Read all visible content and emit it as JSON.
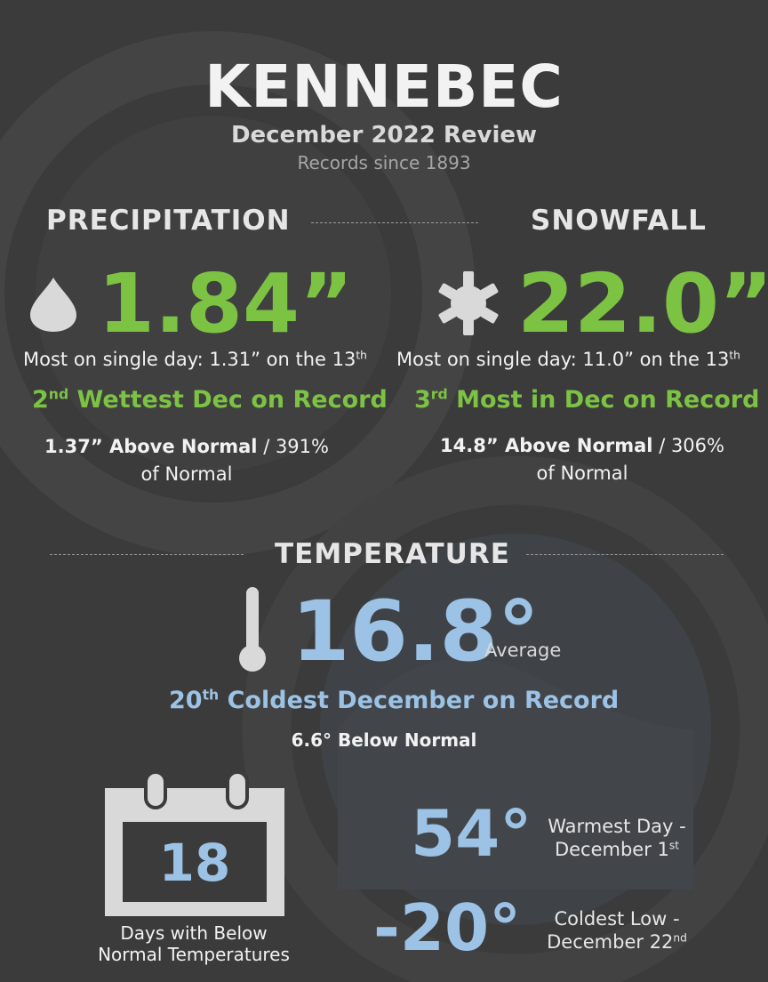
{
  "header": {
    "title": "KENNEBEC",
    "subtitle": "December 2022 Review",
    "records_since": "Records since 1893"
  },
  "precipitation": {
    "heading": "PRECIPITATION",
    "icon": "raindrop-icon",
    "total": "1.84”",
    "max_day_text": "Most on single day: 1.31” on the 13",
    "max_day_sup": "th",
    "rank_num": "2",
    "rank_sup": "nd",
    "rank_text": " Wettest Dec on Record",
    "departure": "1.37” Above Normal",
    "percent": " / 391%",
    "percent_line2": "of Normal"
  },
  "snowfall": {
    "heading": "SNOWFALL",
    "icon": "snowflake-icon",
    "total": "22.0”",
    "max_day_text": "Most on single day: 11.0” on the 13",
    "max_day_sup": "th",
    "rank_num": "3",
    "rank_sup": "rd",
    "rank_text": " Most in Dec on Record",
    "departure": "14.8” Above Normal",
    "percent": " / 306%",
    "percent_line2": "of Normal"
  },
  "temperature": {
    "heading": "TEMPERATURE",
    "icon": "thermometer-icon",
    "average": "16.8°",
    "average_label": "Average",
    "rank_num": "20",
    "rank_sup": "th",
    "rank_text": " Coldest December on Record",
    "departure": "6.6° Below Normal",
    "days_below": "18",
    "days_below_label_1": "Days with Below",
    "days_below_label_2": "Normal Temperatures",
    "warmest_value": "54°",
    "warmest_label_1": "Warmest Day -",
    "warmest_label_2": "December 1",
    "warmest_sup": "st",
    "coldest_value": "-20°",
    "coldest_label_1": "Coldest Low -",
    "coldest_label_2": "December 22",
    "coldest_sup": "nd"
  },
  "colors": {
    "background": "#3b3b3b",
    "green": "#7cc243",
    "blue": "#9cc2e5",
    "text": "#f2f2f2"
  }
}
